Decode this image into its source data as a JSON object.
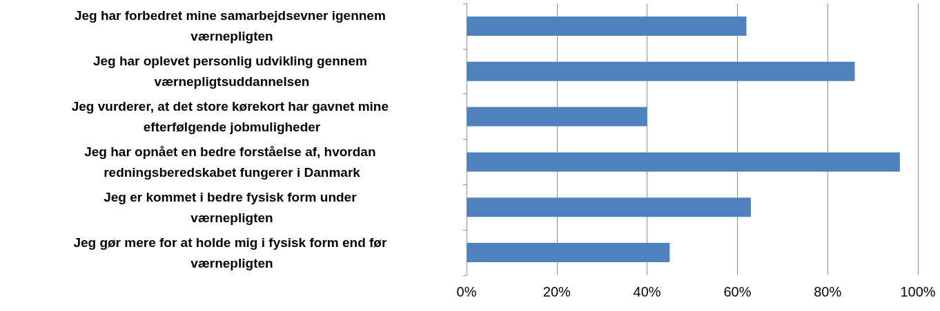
{
  "chart_data": {
    "type": "bar",
    "orientation": "horizontal",
    "categories": [
      "Jeg har forbedret mine samarbejdsevner igennem værnepligten",
      "Jeg har oplevet personlig udvikling gennem værnepligtsuddannelsen",
      "Jeg vurderer, at det store kørekort har gavnet mine efterfølgende jobmuligheder",
      "Jeg har opnået en bedre forståelse af, hvordan redningsberedskabet fungerer i Danmark",
      "Jeg er kommet i bedre fysisk form under værnepligten",
      "Jeg gør mere for at holde mig i fysisk form end før værnepligten"
    ],
    "values": [
      62,
      86,
      40,
      96,
      63,
      45
    ],
    "color": "#4f81bd",
    "xlim": [
      0,
      100
    ],
    "xticks": [
      {
        "value": 0,
        "label": "0%"
      },
      {
        "value": 20,
        "label": "20%"
      },
      {
        "value": 40,
        "label": "40%"
      },
      {
        "value": 60,
        "label": "60%"
      },
      {
        "value": 80,
        "label": "80%"
      },
      {
        "value": 100,
        "label": "100%"
      }
    ],
    "grid": "x"
  }
}
